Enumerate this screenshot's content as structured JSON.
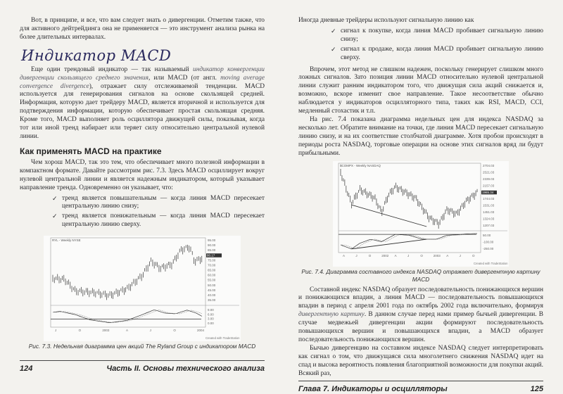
{
  "left_page": {
    "para1": "Вот, в принципе, и все, что вам следует знать о дивергенции. Отметим также, что для активного дейтрейдинга она не применяется — это инструмент анализа рынка на более длительных интервалах.",
    "heading": "Индикатор MACD",
    "para2_start": "Еще один трендовый индикатор — так называемый ",
    "para2_em1": "индикатор конвергенции дивергенции скользящего среднего значения",
    "para2_mid": ", или MACD (от англ. ",
    "para2_em2": "moving average convergence divergence",
    "para2_end": "), отражает силу отслеживаемой тенденции. MACD используется для генерирования сигналов на основе скользящей средней. Информация, которую дает трейдеру MACD, является вторичной и используется для подтверждения информации, которую обеспечивает простая скользящая средняя. Кроме того, MACD выполняет роль осциллятора движущей силы, показывая, когда тот или иной тренд набирает или теряет силу относительно центральной нулевой линии.",
    "subheading": "Как применять MACD на практике",
    "para3": "Чем хорош MACD, так это тем, что обеспечивает много полезной информации в компактном формате. Давайте рассмотрим рис. 7.3. Здесь MACD осциллирует вокруг нулевой центральной линии и является надежным индикатором, который указывает направление тренда. Одновременно он указывает, что:",
    "bullets": [
      "тренд является повышательным — когда линия MACD пересекает центральную линию снизу;",
      "тренд является понижательным — когда линия MACD пересекает центральную линию сверху."
    ],
    "figure": {
      "header": "RYL - Weekly NYSE",
      "price_ticks": [
        "95.00",
        "90.00",
        "85.00",
        "80.17",
        "75.00",
        "70.00",
        "65.00",
        "60.00",
        "55.00",
        "50.00",
        "45.00",
        "40.00",
        "35.00"
      ],
      "macd_ticks": [
        "9.00",
        "6.00",
        "3.00",
        "0.00"
      ],
      "x_ticks": [
        "J",
        "O",
        "2003",
        "A",
        "J",
        "O",
        "2004"
      ],
      "credit": "Created with TradeStation",
      "caption": "Рис. 7.3. Недельная диаграмма цен акций The Ryland Group с индикатором MACD"
    },
    "page_number": "124",
    "running_head": "Часть II. Основы технического анализа"
  },
  "right_page": {
    "para1": "Иногда дневные трейдеры используют сигнальную линию как",
    "bullets": [
      "сигнал к покупке, когда линия MACD пробивает сигнальную линию снизу;",
      "сигнал к продаже, когда линия MACD пробивает сигнальную линию сверху."
    ],
    "para2": "Впрочем, этот метод не слишком надежен, поскольку генерирует слишком много ложных сигналов. Зато позиция линии MACD относительно нулевой центральной линии служит ранним индикатором того, что движущая сила акций снижается и, возможно, вскоре изменит свое направление. Такое несоответствие обычно наблюдается у индикаторов осцилляторного типа, таких как RSI, MACD, CCI, медленный стохастик и т.п.",
    "para3": "На рис. 7.4 показана диаграмма недельных цен для индекса NASDAQ за несколько лет. Обратите внимание на точки, где линия MACD пересекает сигнальную линию снизу, и на их соответствие столбчатой диаграмме. Хотя пробои происходят в периоды роста NASDAQ, торговые операции на основе этих сигналов вряд ли будут прибыльными.",
    "figure": {
      "header": "$COMPX - Weekly NASDAQ",
      "price_ticks": [
        "2704.03",
        "2521.03",
        "2339.03",
        "2157.03",
        "1965.34",
        "1744.03",
        "1531.03",
        "1451.03",
        "1324.03",
        "1207.03"
      ],
      "macd_ticks": [
        "50.00",
        "-100.00",
        "-250.00"
      ],
      "x_ticks": [
        "A",
        "J",
        "O",
        "2002",
        "A",
        "J",
        "O",
        "2003",
        "A",
        "J",
        "O"
      ],
      "credit": "Created with TradeStation",
      "caption": "Рис. 7.4. Диаграмма составного индекса NASDAQ отражает дивергентную картину MACD"
    },
    "para4_start": "Составной индекс NASDAQ образует последовательность понижающихся вершин и понижающихся впадин, а линия MACD — последовательность повышающихся впадин в период с апреля 2001 года по октябрь 2002 года включительно, формируя ",
    "para4_em": "дивергентную картину",
    "para4_end": ". В данном случае перед нами пример бычьей дивергенции. В случае медвежьей дивергенции акции формируют последовательность повышающихся вершин и повышающихся впадин, а MACD образует последовательность понижающихся вершин.",
    "para5": "Бычью дивергенцию на составном индексе NASDAQ следует интерпретировать как сигнал о том, что движущаяся сила многолетнего снижения NASDAQ идет на спад и высока вероятность появления благоприятной возможности для покупки акций. Всякий раз,",
    "page_number": "125",
    "running_head": "Глава 7. Индикаторы и осцилляторы"
  },
  "colors": {
    "paper": "#f3f2ee",
    "heading_script": "#2b2a5e",
    "text": "#2a2a2e"
  },
  "icons": {
    "bullet": "check-mark-icon"
  }
}
